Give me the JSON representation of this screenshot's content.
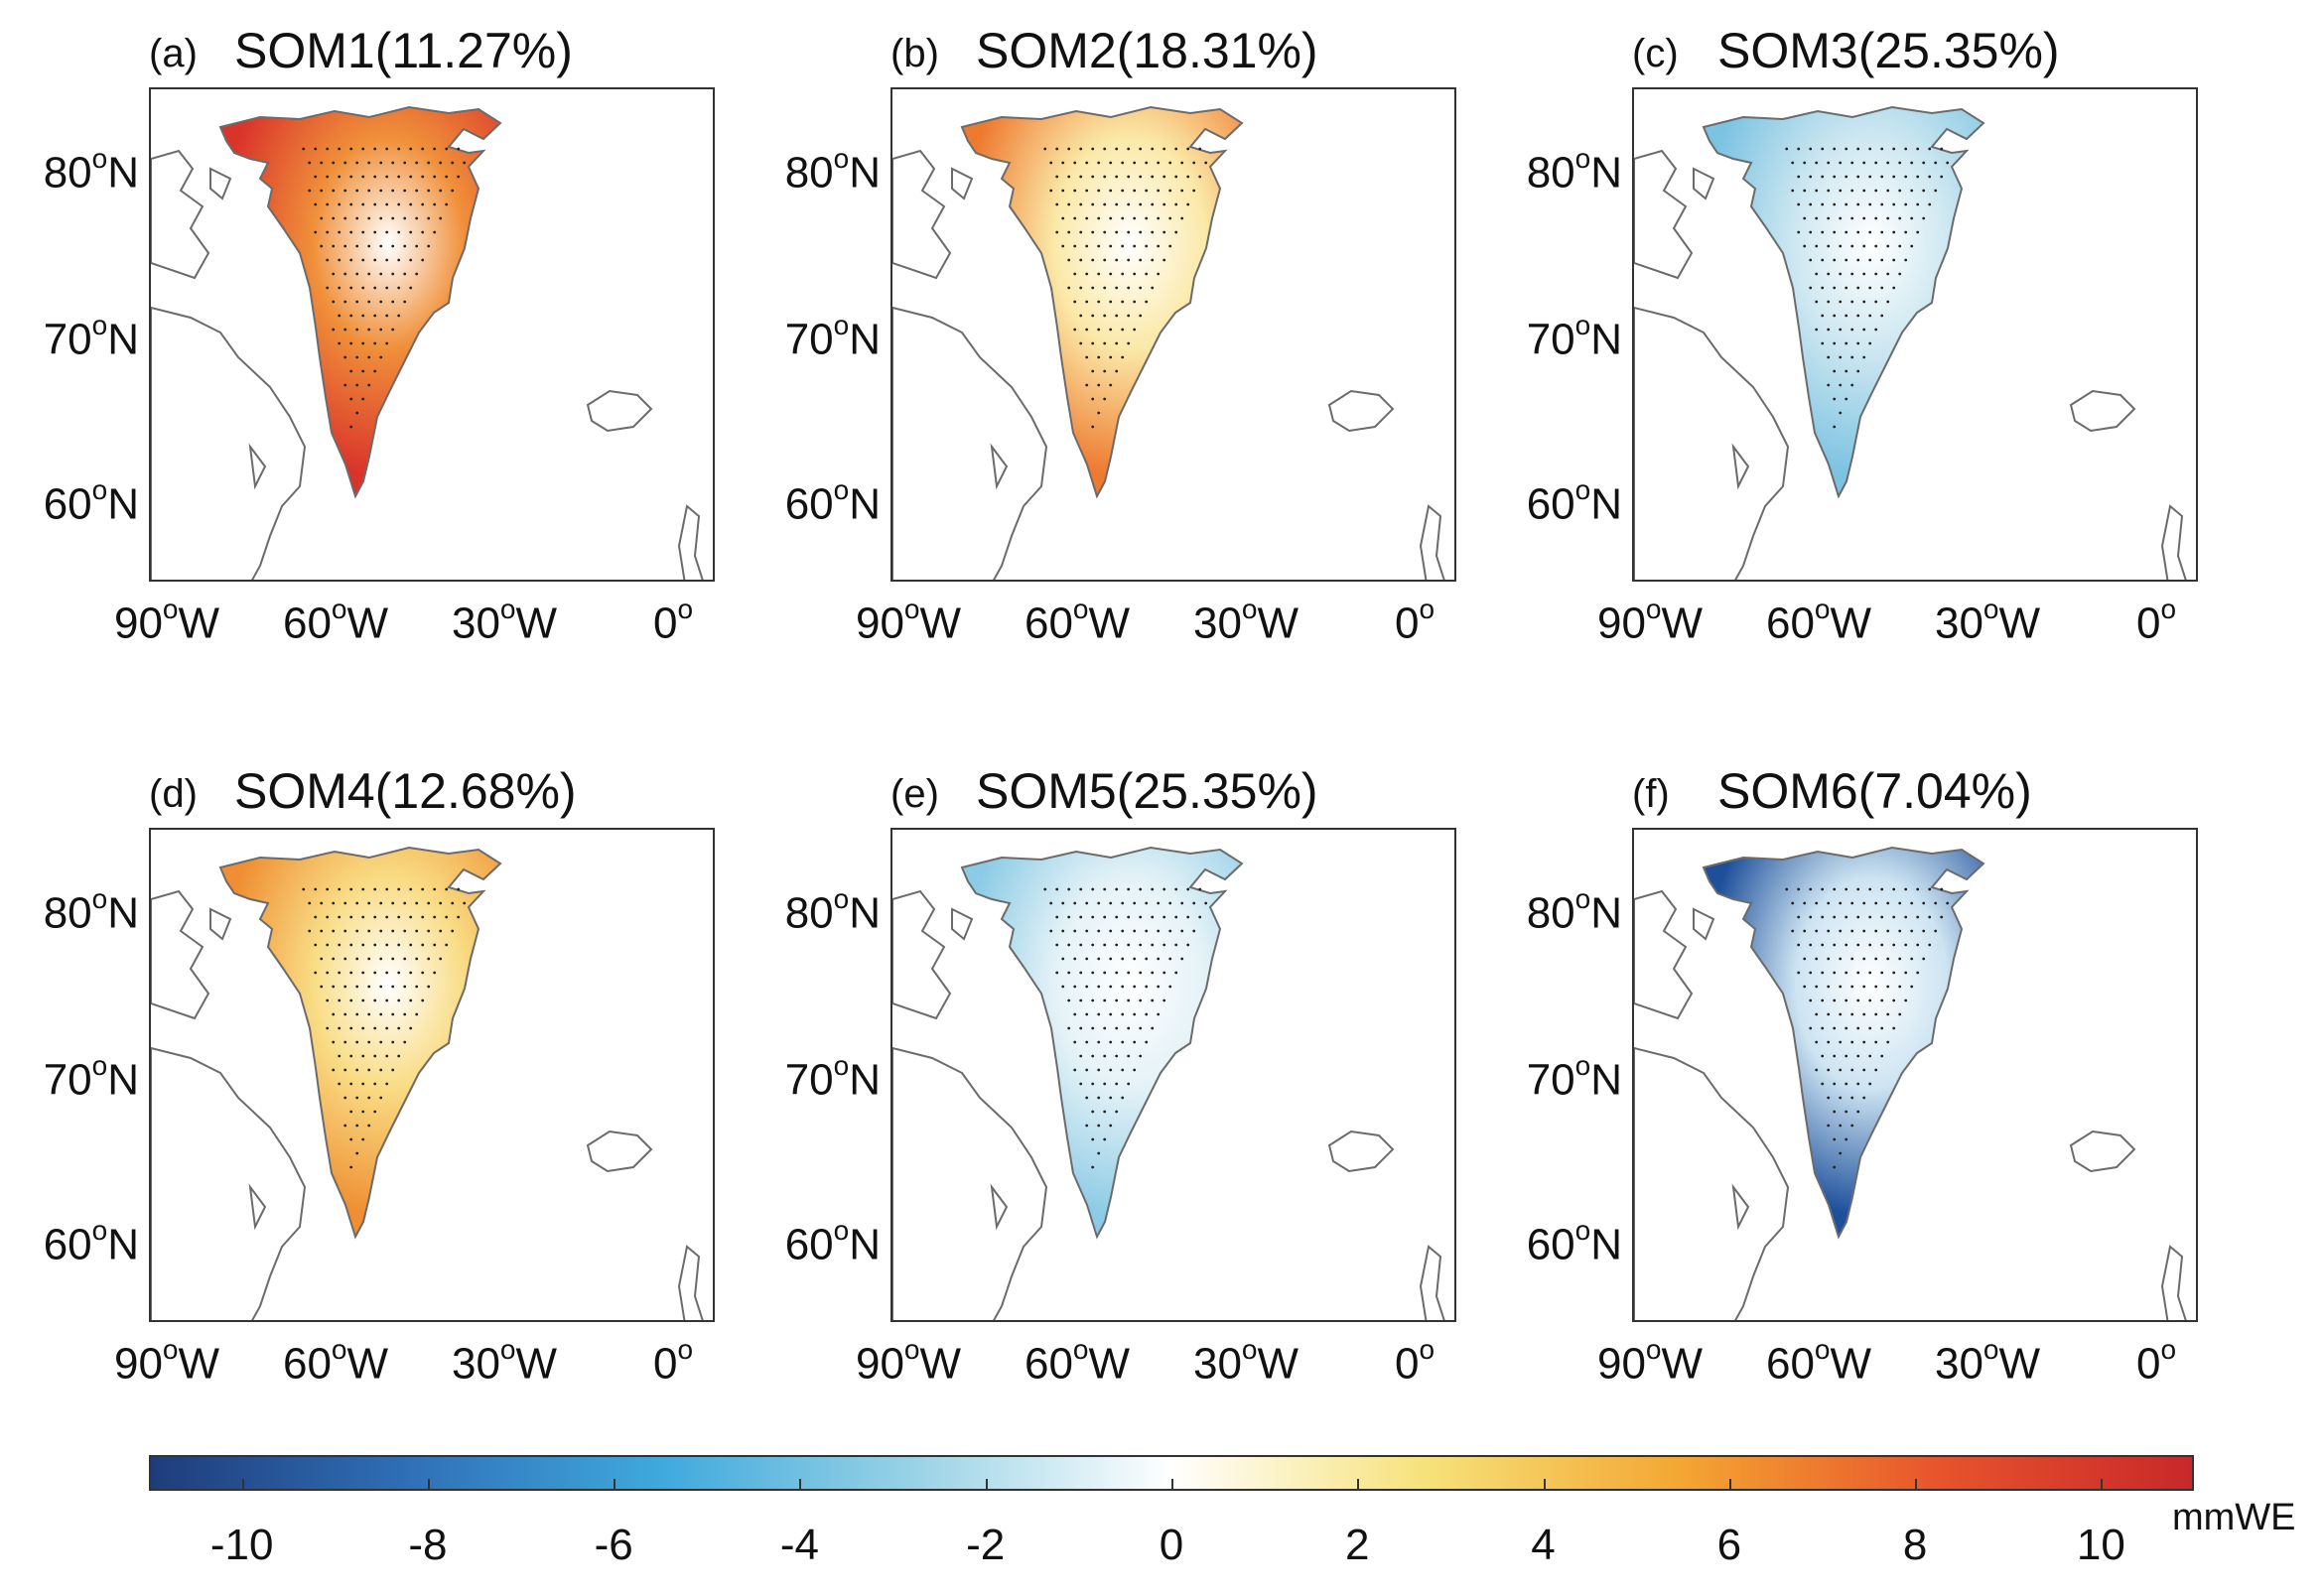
{
  "figure": {
    "colorbar": {
      "unit": "mmWE",
      "range": [
        -11,
        11
      ],
      "ticks": [
        -10,
        -8,
        -6,
        -4,
        -2,
        0,
        2,
        4,
        6,
        8,
        10
      ],
      "colors": [
        "#1f3c7a",
        "#2f6fb6",
        "#3fa9dd",
        "#9ad3e6",
        "#ffffff",
        "#f6e27a",
        "#f4a632",
        "#e8542c",
        "#c8282a"
      ]
    },
    "axes": {
      "lat_labels": [
        {
          "deg": "80",
          "hemi": "N"
        },
        {
          "deg": "70",
          "hemi": "N"
        },
        {
          "deg": "60",
          "hemi": "N"
        }
      ],
      "lon_labels": [
        {
          "deg": "90",
          "hemi": "W"
        },
        {
          "deg": "60",
          "hemi": "W"
        },
        {
          "deg": "30",
          "hemi": "W"
        },
        {
          "deg": "0",
          "hemi": ""
        }
      ],
      "degree_symbol": "o"
    },
    "panels": [
      {
        "label": "(a)",
        "title": "SOM1(11.27%)",
        "mean_anomaly_mmwe": 5.5,
        "fill": "#f0903a",
        "edge": "#d9342a"
      },
      {
        "label": "(b)",
        "title": "SOM2(18.31%)",
        "mean_anomaly_mmwe": 2.5,
        "fill": "#fbe9a8",
        "edge": "#ee7a30"
      },
      {
        "label": "(c)",
        "title": "SOM3(25.35%)",
        "mean_anomaly_mmwe": -3.0,
        "fill": "#cfe8f1",
        "edge": "#7cc3e2"
      },
      {
        "label": "(d)",
        "title": "SOM4(12.68%)",
        "mean_anomaly_mmwe": 3.0,
        "fill": "#f9dc84",
        "edge": "#ef8e32"
      },
      {
        "label": "(e)",
        "title": "SOM5(25.35%)",
        "mean_anomaly_mmwe": -2.5,
        "fill": "#e4f2f7",
        "edge": "#8ccbe5"
      },
      {
        "label": "(f)",
        "title": "SOM6(7.04%)",
        "mean_anomaly_mmwe": -8.0,
        "fill": "#cde4f2",
        "edge": "#1d4f9a"
      }
    ]
  }
}
